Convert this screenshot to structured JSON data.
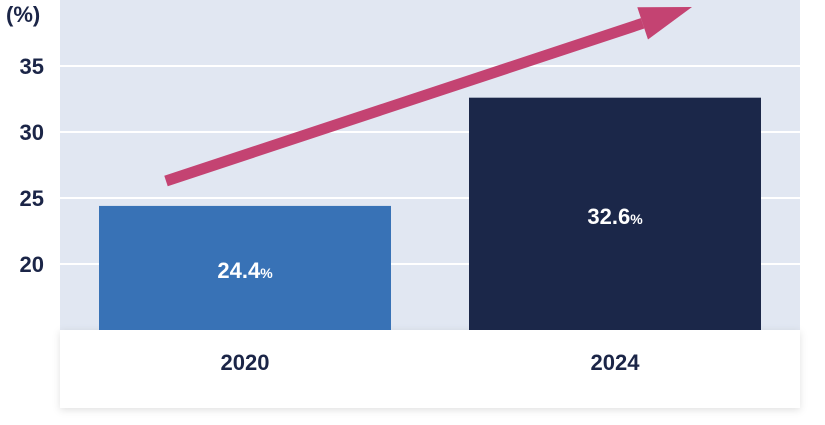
{
  "chart_data": {
    "type": "bar",
    "categories": [
      "2020",
      "2024"
    ],
    "values": [
      24.4,
      32.6
    ],
    "data_labels": [
      "24.4",
      "32.6"
    ],
    "unit_label": "%",
    "y_unit_label": "(%)",
    "yticks": [
      20,
      25,
      30,
      35
    ],
    "ylim": [
      15,
      40
    ],
    "grid": true,
    "bar_colors": [
      "#3872b6",
      "#1b2749"
    ],
    "plot_background": "#e1e7f2",
    "trend_arrow_color": "#c44372",
    "trend_arrow": true
  }
}
